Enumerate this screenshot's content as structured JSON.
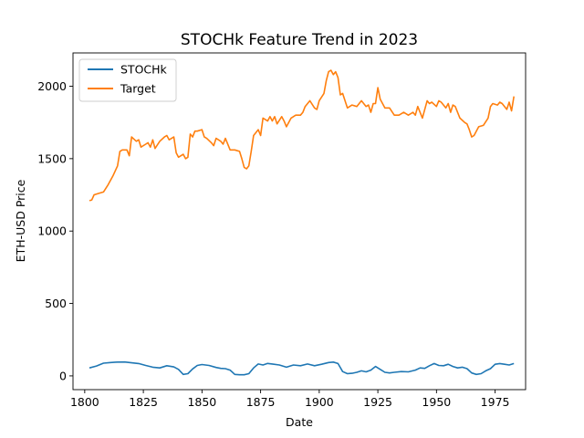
{
  "chart_data": {
    "type": "line",
    "title": "STOCHk Feature Trend in 2023",
    "xlabel": "Date",
    "ylabel": "ETH-USD Price",
    "xlim": [
      1795,
      1988
    ],
    "ylim": [
      -95,
      2230
    ],
    "x_ticks": [
      1800,
      1825,
      1850,
      1875,
      1900,
      1925,
      1950,
      1975
    ],
    "y_ticks": [
      0,
      500,
      1000,
      1500,
      2000
    ],
    "grid": false,
    "legend": "top-left",
    "series": [
      {
        "name": "STOCHk",
        "color": "#1f77b4",
        "x": [
          1802,
          1805,
          1808,
          1811,
          1814,
          1817,
          1820,
          1823,
          1826,
          1829,
          1832,
          1835,
          1838,
          1840,
          1842,
          1844,
          1846,
          1848,
          1850,
          1853,
          1856,
          1858,
          1860,
          1862,
          1864,
          1866,
          1868,
          1870,
          1872,
          1874,
          1876,
          1878,
          1880,
          1883,
          1886,
          1889,
          1892,
          1895,
          1898,
          1901,
          1904,
          1906,
          1908,
          1910,
          1912,
          1914,
          1916,
          1918,
          1920,
          1922,
          1924,
          1926,
          1928,
          1930,
          1932,
          1935,
          1938,
          1941,
          1943,
          1945,
          1947,
          1949,
          1951,
          1953,
          1955,
          1957,
          1959,
          1961,
          1963,
          1965,
          1967,
          1969,
          1971,
          1973,
          1975,
          1977,
          1979,
          1981,
          1983
        ],
        "values": [
          55,
          68,
          88,
          92,
          95,
          96,
          90,
          85,
          72,
          60,
          55,
          70,
          62,
          45,
          10,
          15,
          48,
          72,
          78,
          72,
          58,
          52,
          50,
          40,
          10,
          8,
          8,
          15,
          55,
          82,
          75,
          86,
          82,
          75,
          60,
          75,
          70,
          82,
          70,
          80,
          92,
          95,
          85,
          30,
          15,
          18,
          25,
          35,
          28,
          40,
          65,
          45,
          25,
          20,
          25,
          30,
          28,
          40,
          55,
          52,
          70,
          85,
          72,
          70,
          80,
          65,
          55,
          60,
          50,
          20,
          10,
          15,
          35,
          50,
          80,
          85,
          80,
          75,
          85
        ]
      },
      {
        "name": "Target",
        "color": "#ff7f0e",
        "x": [
          1802,
          1803,
          1804,
          1806,
          1808,
          1810,
          1812,
          1814,
          1815,
          1816,
          1818,
          1819,
          1820,
          1822,
          1823,
          1824,
          1826,
          1827,
          1828,
          1829,
          1830,
          1832,
          1834,
          1835,
          1836,
          1838,
          1839,
          1840,
          1842,
          1843,
          1844,
          1845,
          1846,
          1847,
          1848,
          1850,
          1851,
          1852,
          1854,
          1855,
          1856,
          1858,
          1859,
          1860,
          1862,
          1864,
          1866,
          1867,
          1868,
          1869,
          1870,
          1871,
          1872,
          1873,
          1874,
          1875,
          1876,
          1878,
          1879,
          1880,
          1881,
          1882,
          1884,
          1885,
          1886,
          1888,
          1890,
          1892,
          1893,
          1894,
          1896,
          1898,
          1899,
          1900,
          1902,
          1903,
          1904,
          1905,
          1906,
          1907,
          1908,
          1909,
          1910,
          1912,
          1914,
          1916,
          1918,
          1920,
          1921,
          1922,
          1923,
          1924,
          1925,
          1926,
          1928,
          1930,
          1932,
          1934,
          1936,
          1938,
          1940,
          1941,
          1942,
          1944,
          1946,
          1947,
          1948,
          1950,
          1951,
          1952,
          1954,
          1955,
          1956,
          1957,
          1958,
          1960,
          1962,
          1963,
          1964,
          1965,
          1966,
          1968,
          1970,
          1972,
          1973,
          1974,
          1976,
          1977,
          1978,
          1979,
          1980,
          1981,
          1982,
          1983
        ],
        "values": [
          1210,
          1215,
          1250,
          1260,
          1270,
          1320,
          1380,
          1450,
          1550,
          1560,
          1560,
          1520,
          1650,
          1620,
          1630,
          1580,
          1600,
          1610,
          1580,
          1630,
          1570,
          1620,
          1650,
          1660,
          1630,
          1650,
          1540,
          1510,
          1530,
          1500,
          1510,
          1670,
          1650,
          1690,
          1690,
          1700,
          1650,
          1640,
          1610,
          1590,
          1640,
          1620,
          1600,
          1640,
          1560,
          1560,
          1550,
          1500,
          1440,
          1430,
          1450,
          1550,
          1660,
          1680,
          1700,
          1660,
          1780,
          1760,
          1790,
          1760,
          1790,
          1740,
          1790,
          1760,
          1720,
          1780,
          1800,
          1800,
          1820,
          1860,
          1900,
          1850,
          1840,
          1900,
          1950,
          2040,
          2100,
          2110,
          2080,
          2100,
          2060,
          1940,
          1950,
          1850,
          1870,
          1860,
          1900,
          1860,
          1870,
          1820,
          1880,
          1880,
          1990,
          1910,
          1850,
          1850,
          1800,
          1800,
          1820,
          1800,
          1820,
          1800,
          1860,
          1780,
          1900,
          1880,
          1890,
          1860,
          1900,
          1890,
          1850,
          1880,
          1820,
          1870,
          1860,
          1780,
          1750,
          1740,
          1700,
          1650,
          1660,
          1720,
          1730,
          1780,
          1860,
          1880,
          1870,
          1890,
          1880,
          1860,
          1840,
          1890,
          1830,
          1930
        ]
      }
    ]
  }
}
